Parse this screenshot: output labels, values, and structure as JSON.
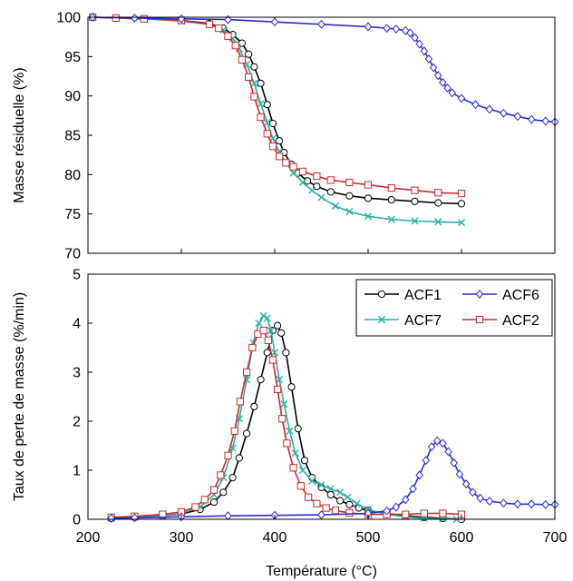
{
  "chart_data": [
    {
      "type": "line",
      "xlabel": "",
      "ylabel": "Masse résiduelle (%)",
      "xlim": [
        200,
        700
      ],
      "ylim": [
        70,
        100
      ],
      "yticks": [
        70,
        75,
        80,
        85,
        90,
        95,
        100
      ],
      "xticks": [],
      "grid": false,
      "series": [
        {
          "name": "ACF1",
          "color": "#000000",
          "marker": "circle",
          "x": [
            205,
            230,
            260,
            300,
            330,
            345,
            355,
            365,
            372,
            378,
            385,
            392,
            398,
            405,
            410,
            418,
            425,
            435,
            445,
            460,
            480,
            500,
            525,
            550,
            575,
            600
          ],
          "y": [
            100,
            99.9,
            99.8,
            99.6,
            99.2,
            98.6,
            97.8,
            96.7,
            95.3,
            93.7,
            91.6,
            88.9,
            86.5,
            84.3,
            82.8,
            81.3,
            80.2,
            79.2,
            78.5,
            77.8,
            77.3,
            77.0,
            76.8,
            76.6,
            76.4,
            76.3
          ]
        },
        {
          "name": "ACF7",
          "color": "#2ab0a8",
          "marker": "x",
          "x": [
            205,
            230,
            260,
            300,
            330,
            345,
            355,
            362,
            370,
            378,
            385,
            392,
            398,
            405,
            412,
            420,
            430,
            440,
            450,
            465,
            480,
            500,
            525,
            550,
            575,
            600
          ],
          "y": [
            100,
            99.9,
            99.8,
            99.5,
            99.1,
            98.4,
            97.3,
            96.0,
            94.0,
            91.6,
            89.0,
            86.6,
            84.6,
            82.9,
            81.5,
            80.2,
            79.0,
            78.0,
            77.1,
            76.0,
            75.3,
            74.7,
            74.3,
            74.1,
            74.0,
            73.9
          ]
        },
        {
          "name": "ACF2",
          "color": "#cc2a2a",
          "marker": "square",
          "x": [
            205,
            230,
            260,
            300,
            330,
            340,
            350,
            358,
            365,
            372,
            378,
            385,
            392,
            398,
            405,
            412,
            420,
            430,
            445,
            460,
            480,
            500,
            525,
            550,
            575,
            600
          ],
          "y": [
            100,
            99.9,
            99.8,
            99.6,
            99.1,
            98.6,
            97.6,
            96.4,
            94.6,
            92.4,
            89.9,
            87.3,
            85.2,
            83.6,
            82.3,
            81.5,
            81.0,
            80.4,
            79.8,
            79.3,
            79.0,
            78.7,
            78.3,
            78.0,
            77.7,
            77.6
          ]
        },
        {
          "name": "ACF6",
          "color": "#2a2ad4",
          "marker": "diamond",
          "x": [
            205,
            250,
            300,
            350,
            400,
            450,
            500,
            520,
            530,
            540,
            545,
            550,
            555,
            560,
            565,
            570,
            575,
            580,
            585,
            590,
            600,
            615,
            630,
            645,
            660,
            675,
            690,
            700
          ],
          "y": [
            100,
            99.9,
            99.8,
            99.7,
            99.4,
            99.1,
            98.8,
            98.6,
            98.5,
            98.3,
            98.0,
            97.4,
            96.6,
            95.7,
            94.7,
            93.6,
            92.6,
            91.7,
            91.0,
            90.4,
            89.7,
            88.9,
            88.3,
            87.8,
            87.4,
            87.0,
            86.8,
            86.7
          ]
        }
      ]
    },
    {
      "type": "line",
      "xlabel": "Température (°C)",
      "ylabel": "Taux de perte de masse (%/min)",
      "xlim": [
        200,
        700
      ],
      "ylim": [
        0,
        5
      ],
      "yticks": [
        0,
        1,
        2,
        3,
        4,
        5
      ],
      "xticks": [
        200,
        300,
        400,
        500,
        600,
        700
      ],
      "grid": false,
      "legend_position": "top-right",
      "legend_order": [
        "ACF1",
        "ACF6",
        "ACF7",
        "ACF2"
      ],
      "series": [
        {
          "name": "ACF1",
          "color": "#000000",
          "marker": "circle",
          "x": [
            225,
            250,
            280,
            300,
            320,
            335,
            345,
            355,
            362,
            370,
            378,
            385,
            392,
            398,
            403,
            407,
            412,
            418,
            425,
            432,
            440,
            450,
            460,
            470,
            480,
            490,
            500,
            520,
            540,
            560,
            580,
            600
          ],
          "y": [
            0.02,
            0.04,
            0.07,
            0.11,
            0.2,
            0.35,
            0.55,
            0.85,
            1.25,
            1.75,
            2.3,
            2.85,
            3.4,
            3.85,
            3.95,
            3.8,
            3.4,
            2.7,
            1.85,
            1.2,
            0.85,
            0.65,
            0.5,
            0.38,
            0.3,
            0.23,
            0.18,
            0.12,
            0.07,
            0.04,
            0.02,
            0.0
          ]
        },
        {
          "name": "ACF7",
          "color": "#2ab0a8",
          "marker": "x",
          "x": [
            225,
            250,
            280,
            300,
            320,
            335,
            345,
            355,
            362,
            370,
            377,
            383,
            388,
            392,
            396,
            400,
            405,
            410,
            416,
            422,
            430,
            440,
            450,
            460,
            470,
            478,
            488,
            500,
            520,
            540,
            560,
            580,
            595
          ],
          "y": [
            0.02,
            0.04,
            0.07,
            0.12,
            0.25,
            0.5,
            0.85,
            1.45,
            2.05,
            2.85,
            3.6,
            4.0,
            4.15,
            4.1,
            3.85,
            3.4,
            2.85,
            2.35,
            1.8,
            1.35,
            1.0,
            0.78,
            0.7,
            0.62,
            0.55,
            0.45,
            0.32,
            0.2,
            0.1,
            0.05,
            0.02,
            0.01,
            0.0
          ]
        },
        {
          "name": "ACF2",
          "color": "#cc2a2a",
          "marker": "square",
          "x": [
            225,
            250,
            280,
            300,
            315,
            325,
            335,
            342,
            350,
            357,
            363,
            370,
            376,
            382,
            388,
            393,
            398,
            403,
            408,
            413,
            420,
            428,
            436,
            445,
            455,
            465,
            480,
            500,
            520,
            540,
            560,
            580,
            600
          ],
          "y": [
            0.04,
            0.06,
            0.1,
            0.15,
            0.25,
            0.4,
            0.6,
            0.9,
            1.3,
            1.8,
            2.4,
            3.0,
            3.5,
            3.78,
            3.85,
            3.65,
            3.25,
            2.65,
            2.05,
            1.55,
            1.05,
            0.68,
            0.45,
            0.32,
            0.23,
            0.18,
            0.13,
            0.1,
            0.1,
            0.1,
            0.12,
            0.12,
            0.1
          ]
        },
        {
          "name": "ACF6",
          "color": "#2a2ad4",
          "marker": "diamond",
          "x": [
            225,
            250,
            300,
            350,
            400,
            450,
            500,
            520,
            530,
            540,
            548,
            555,
            562,
            568,
            574,
            580,
            586,
            592,
            598,
            605,
            612,
            620,
            630,
            645,
            660,
            675,
            690,
            700
          ],
          "y": [
            0.02,
            0.03,
            0.05,
            0.07,
            0.08,
            0.09,
            0.12,
            0.17,
            0.25,
            0.4,
            0.62,
            0.9,
            1.2,
            1.48,
            1.6,
            1.55,
            1.38,
            1.15,
            0.92,
            0.72,
            0.55,
            0.43,
            0.37,
            0.33,
            0.31,
            0.31,
            0.3,
            0.3
          ]
        }
      ]
    }
  ]
}
